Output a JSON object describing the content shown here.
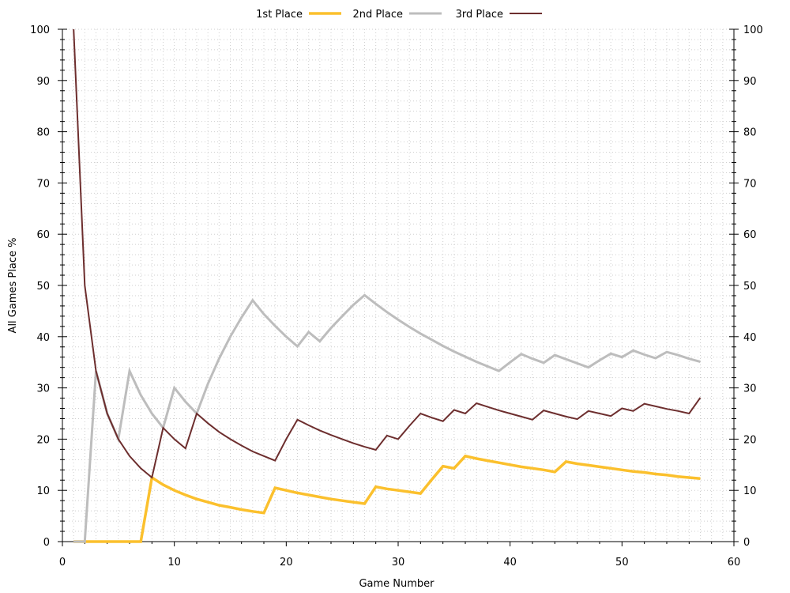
{
  "chart_data": {
    "type": "line",
    "title": "",
    "xlabel": "Game Number",
    "ylabel": "All Games Place %",
    "xlim": [
      0,
      60
    ],
    "ylim": [
      0,
      100
    ],
    "x_ticks": [
      "0",
      "10",
      "20",
      "30",
      "40",
      "50",
      "60"
    ],
    "y_ticks": [
      "0",
      "10",
      "20",
      "30",
      "40",
      "50",
      "60",
      "70",
      "80",
      "90",
      "100"
    ],
    "grid": true,
    "mirror_y_axis": true,
    "legend_position": "top-center",
    "series": [
      {
        "name": "1st Place",
        "color": "#FBC02D",
        "points": [
          [
            1,
            0
          ],
          [
            2,
            0
          ],
          [
            3,
            0
          ],
          [
            4,
            0
          ],
          [
            5,
            0
          ],
          [
            6,
            0
          ],
          [
            7,
            0
          ],
          [
            8,
            12.5
          ],
          [
            9,
            11.1
          ],
          [
            10,
            10
          ],
          [
            11,
            9.1
          ],
          [
            12,
            8.3
          ],
          [
            13,
            7.7
          ],
          [
            14,
            7.1
          ],
          [
            15,
            6.7
          ],
          [
            16,
            6.25
          ],
          [
            17,
            5.9
          ],
          [
            18,
            5.6
          ],
          [
            19,
            10.5
          ],
          [
            20,
            10
          ],
          [
            21,
            9.5
          ],
          [
            22,
            9.1
          ],
          [
            23,
            8.7
          ],
          [
            24,
            8.3
          ],
          [
            25,
            8
          ],
          [
            26,
            7.7
          ],
          [
            27,
            7.4
          ],
          [
            28,
            10.7
          ],
          [
            29,
            10.3
          ],
          [
            30,
            10
          ],
          [
            31,
            9.7
          ],
          [
            32,
            9.4
          ],
          [
            33,
            12.1
          ],
          [
            34,
            14.7
          ],
          [
            35,
            14.3
          ],
          [
            36,
            16.7
          ],
          [
            37,
            16.2
          ],
          [
            38,
            15.8
          ],
          [
            39,
            15.4
          ],
          [
            40,
            15
          ],
          [
            41,
            14.6
          ],
          [
            42,
            14.3
          ],
          [
            43,
            14
          ],
          [
            44,
            13.6
          ],
          [
            45,
            15.6
          ],
          [
            46,
            15.2
          ],
          [
            47,
            14.9
          ],
          [
            48,
            14.6
          ],
          [
            49,
            14.3
          ],
          [
            50,
            14
          ],
          [
            51,
            13.7
          ],
          [
            52,
            13.5
          ],
          [
            53,
            13.2
          ],
          [
            54,
            13
          ],
          [
            55,
            12.7
          ],
          [
            56,
            12.5
          ],
          [
            57,
            12.3
          ]
        ]
      },
      {
        "name": "2nd Place",
        "color": "#BDBDBD",
        "points": [
          [
            1,
            0
          ],
          [
            2,
            0
          ],
          [
            3,
            33.3
          ],
          [
            4,
            25
          ],
          [
            5,
            20
          ],
          [
            6,
            33.3
          ],
          [
            7,
            28.6
          ],
          [
            8,
            25
          ],
          [
            9,
            22.2
          ],
          [
            10,
            30
          ],
          [
            11,
            27.3
          ],
          [
            12,
            25
          ],
          [
            13,
            30.8
          ],
          [
            14,
            35.7
          ],
          [
            15,
            40
          ],
          [
            16,
            43.75
          ],
          [
            17,
            47.1
          ],
          [
            18,
            44.4
          ],
          [
            19,
            42.1
          ],
          [
            20,
            40
          ],
          [
            21,
            38.1
          ],
          [
            22,
            40.9
          ],
          [
            23,
            39.1
          ],
          [
            24,
            41.7
          ],
          [
            25,
            44
          ],
          [
            26,
            46.2
          ],
          [
            27,
            48.1
          ],
          [
            28,
            46.4
          ],
          [
            29,
            44.8
          ],
          [
            30,
            43.3
          ],
          [
            31,
            41.9
          ],
          [
            32,
            40.6
          ],
          [
            33,
            39.4
          ],
          [
            34,
            38.2
          ],
          [
            35,
            37.1
          ],
          [
            36,
            36.1
          ],
          [
            37,
            35.1
          ],
          [
            38,
            34.2
          ],
          [
            39,
            33.3
          ],
          [
            40,
            35
          ],
          [
            41,
            36.6
          ],
          [
            42,
            35.7
          ],
          [
            43,
            34.9
          ],
          [
            44,
            36.4
          ],
          [
            45,
            35.6
          ],
          [
            46,
            34.8
          ],
          [
            47,
            34
          ],
          [
            48,
            35.4
          ],
          [
            49,
            36.7
          ],
          [
            50,
            36
          ],
          [
            51,
            37.3
          ],
          [
            52,
            36.5
          ],
          [
            53,
            35.8
          ],
          [
            54,
            37
          ],
          [
            55,
            36.4
          ],
          [
            56,
            35.7
          ],
          [
            57,
            35.1
          ]
        ]
      },
      {
        "name": "3rd Place",
        "color": "#6D2E2E",
        "points": [
          [
            1,
            100
          ],
          [
            2,
            50
          ],
          [
            3,
            33.3
          ],
          [
            4,
            25
          ],
          [
            5,
            20
          ],
          [
            6,
            16.7
          ],
          [
            7,
            14.3
          ],
          [
            8,
            12.5
          ],
          [
            9,
            22.2
          ],
          [
            10,
            20
          ],
          [
            11,
            18.2
          ],
          [
            12,
            25
          ],
          [
            13,
            23.1
          ],
          [
            14,
            21.4
          ],
          [
            15,
            20
          ],
          [
            16,
            18.75
          ],
          [
            17,
            17.6
          ],
          [
            18,
            16.7
          ],
          [
            19,
            15.8
          ],
          [
            20,
            20
          ],
          [
            21,
            23.8
          ],
          [
            22,
            22.7
          ],
          [
            23,
            21.7
          ],
          [
            24,
            20.8
          ],
          [
            25,
            20
          ],
          [
            26,
            19.2
          ],
          [
            27,
            18.5
          ],
          [
            28,
            17.9
          ],
          [
            29,
            20.7
          ],
          [
            30,
            20
          ],
          [
            31,
            22.6
          ],
          [
            32,
            25
          ],
          [
            33,
            24.2
          ],
          [
            34,
            23.5
          ],
          [
            35,
            25.7
          ],
          [
            36,
            25
          ],
          [
            37,
            27
          ],
          [
            38,
            26.3
          ],
          [
            39,
            25.6
          ],
          [
            40,
            25
          ],
          [
            41,
            24.4
          ],
          [
            42,
            23.8
          ],
          [
            43,
            25.6
          ],
          [
            44,
            25
          ],
          [
            45,
            24.4
          ],
          [
            46,
            23.9
          ],
          [
            47,
            25.5
          ],
          [
            48,
            25
          ],
          [
            49,
            24.5
          ],
          [
            50,
            26
          ],
          [
            51,
            25.5
          ],
          [
            52,
            26.9
          ],
          [
            53,
            26.4
          ],
          [
            54,
            25.9
          ],
          [
            55,
            25.5
          ],
          [
            56,
            25
          ],
          [
            57,
            28.1
          ]
        ]
      }
    ]
  }
}
